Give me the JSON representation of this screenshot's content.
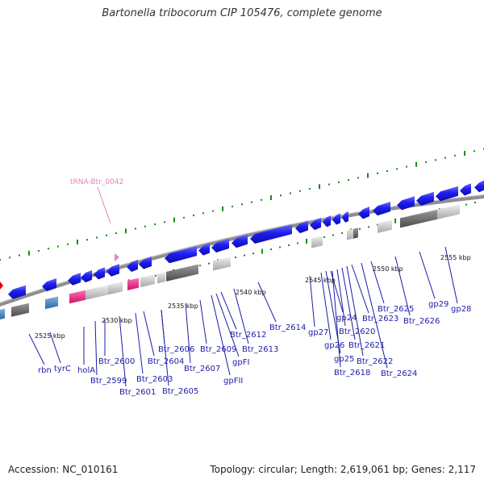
{
  "title": "Bartonella tribocorum CIP 105476, complete genome",
  "footer": {
    "accession": "Accession: NC_010161",
    "stats": "Topology: circular; Length: 2,619,061 bp; Genes: 2,117"
  },
  "trna_label": "tRNA-Btr_0042",
  "kbp_labels": [
    "2525 kbp",
    "2530 kbp",
    "2535 kbp",
    "2540 kbp",
    "2545 kbp",
    "2550 kbp",
    "2555 kbp"
  ],
  "gene_labels": [
    "rbn",
    "tyrC",
    "holA",
    "Btr_2599",
    "Btr_2600",
    "Btr_2601",
    "Btr_2603",
    "Btr_2604",
    "Btr_2605",
    "Btr_2606",
    "Btr_2607",
    "Btr_2609",
    "gpFII",
    "gpFI",
    "Btr_2612",
    "Btr_2613",
    "Btr_2614",
    "gp27",
    "gp26",
    "gp25",
    "gp24",
    "Btr_2618",
    "Btr_2620",
    "Btr_2621",
    "Btr_2622",
    "Btr_2623",
    "Btr_2624",
    "Btr_2625",
    "Btr_2626",
    "gp29",
    "gp28"
  ],
  "colors": {
    "cds": "#1414e6",
    "rna_gene": "#e8207f",
    "pseudo": "#c4c4c4",
    "dark_block": "#6a6a6a",
    "trna": "#e882b8",
    "tick": "#1a8a1a",
    "backbone": "#8a8a8a",
    "label": "#1c1ca8"
  }
}
